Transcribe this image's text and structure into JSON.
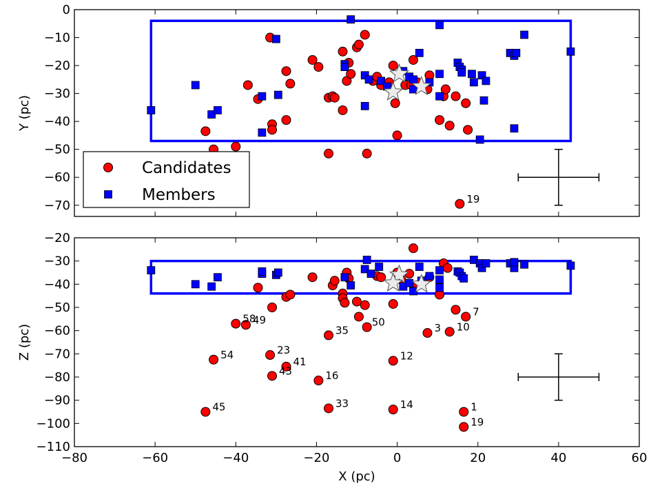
{
  "chart_data": [
    {
      "type": "scatter",
      "id": "top",
      "xlabel": "",
      "ylabel": "Y (pc)",
      "xlim": [
        -80,
        60
      ],
      "ylim": [
        -74,
        0
      ],
      "xticks": [
        -80,
        -60,
        -40,
        -20,
        0,
        20,
        40,
        60
      ],
      "yticks": [
        0,
        -10,
        -20,
        -30,
        -40,
        -50,
        -60,
        -70
      ],
      "ytick_labels": [
        "0",
        "−10",
        "−20",
        "−30",
        "−40",
        "−50",
        "−60",
        "−70"
      ],
      "show_x_tick_labels": false,
      "rect": {
        "x0": -61,
        "x1": 43,
        "y0": -47,
        "y1": -4,
        "color": "#0000ff"
      },
      "error_bar": {
        "x": 40,
        "y": -60,
        "xerr": 10,
        "yerr": 10
      },
      "legend": {
        "location": "lower-left",
        "entries": [
          {
            "label": "Candidates",
            "marker": "circle",
            "color": "#ff0000"
          },
          {
            "label": "Members",
            "marker": "square",
            "color": "#0000ff"
          }
        ]
      },
      "series": [
        {
          "name": "Candidates",
          "marker": "circle",
          "color": "#ff0000",
          "points": [
            [
              -47.5,
              -43.5
            ],
            [
              -45.5,
              -50
            ],
            [
              -40,
              -49
            ],
            [
              -37,
              -27
            ],
            [
              -34.5,
              -32
            ],
            [
              -31.5,
              -10
            ],
            [
              -31,
              -41
            ],
            [
              -31,
              -43
            ],
            [
              -27.5,
              -22
            ],
            [
              -27.5,
              -39.5
            ],
            [
              -26.5,
              -26.5
            ],
            [
              -21,
              -18
            ],
            [
              -19.5,
              -20.5
            ],
            [
              -17,
              -31.5
            ],
            [
              -17,
              -51.5
            ],
            [
              -16,
              -31
            ],
            [
              -15.5,
              -31.5
            ],
            [
              -13.5,
              -15
            ],
            [
              -13.5,
              -36
            ],
            [
              -12.5,
              -25.5
            ],
            [
              -12,
              -19
            ],
            [
              -11.5,
              -23
            ],
            [
              -10,
              -13.5
            ],
            [
              -9.5,
              -12.5
            ],
            [
              -8,
              -9
            ],
            [
              -7.5,
              -51.5
            ],
            [
              -6,
              -25.5
            ],
            [
              -5,
              -24
            ],
            [
              -4,
              -27
            ],
            [
              -2,
              -26
            ],
            [
              -1,
              -20
            ],
            [
              -0.5,
              -33.5
            ],
            [
              0,
              -45
            ],
            [
              2,
              -27
            ],
            [
              3.5,
              -27
            ],
            [
              4,
              -18
            ],
            [
              5,
              -26
            ],
            [
              7.5,
              -28.5
            ],
            [
              8,
              -23.5
            ],
            [
              10.5,
              -39.5
            ],
            [
              11.5,
              -31
            ],
            [
              12,
              -28.5
            ],
            [
              13,
              -41.5
            ],
            [
              14.5,
              -31
            ],
            [
              17,
              -33.5
            ],
            [
              17.5,
              -43
            ],
            [
              15.5,
              -69.5
            ]
          ],
          "labels": [
            {
              "x": 15.5,
              "y": -69.5,
              "text": "19"
            }
          ]
        },
        {
          "name": "Members",
          "marker": "square",
          "color": "#0000ff",
          "points": [
            [
              -61,
              -36
            ],
            [
              -50,
              -27
            ],
            [
              -46,
              -37.5
            ],
            [
              -44.5,
              -36
            ],
            [
              -33.5,
              -31
            ],
            [
              -33.5,
              -44
            ],
            [
              -30,
              -10.5
            ],
            [
              -29.5,
              -30.5
            ],
            [
              -13,
              -19.5
            ],
            [
              -13,
              -20.5
            ],
            [
              -11.5,
              -3.5
            ],
            [
              -8,
              -23.5
            ],
            [
              -8,
              -34.5
            ],
            [
              -7,
              -25
            ],
            [
              -4,
              -25.5
            ],
            [
              -2.5,
              -27.5
            ],
            [
              1.5,
              -22
            ],
            [
              3,
              -24
            ],
            [
              4,
              -25
            ],
            [
              4,
              -28.5
            ],
            [
              5.5,
              -15.5
            ],
            [
              8,
              -26
            ],
            [
              10.5,
              -23
            ],
            [
              10.5,
              -31
            ],
            [
              10.5,
              -5.5
            ],
            [
              15,
              -19
            ],
            [
              15.5,
              -20.5
            ],
            [
              16,
              -21.5
            ],
            [
              16,
              -22.5
            ],
            [
              18.5,
              -23
            ],
            [
              19,
              -26
            ],
            [
              20.5,
              -46.5
            ],
            [
              21,
              -23.5
            ],
            [
              21.5,
              -32.5
            ],
            [
              22,
              -25.5
            ],
            [
              28,
              -15.5
            ],
            [
              29,
              -16.5
            ],
            [
              29.5,
              -15.5
            ],
            [
              29,
              -42.5
            ],
            [
              31.5,
              -9
            ],
            [
              43,
              -15
            ]
          ]
        },
        {
          "name": "Stars",
          "marker": "star",
          "color": "#ebebeb",
          "points": [
            [
              0.5,
              -23
            ],
            [
              -1,
              -29.5
            ],
            [
              6,
              -27.5
            ]
          ]
        }
      ]
    },
    {
      "type": "scatter",
      "id": "bottom",
      "xlabel": "X (pc)",
      "ylabel": "Z (pc)",
      "xlim": [
        -80,
        60
      ],
      "ylim": [
        -110,
        -20
      ],
      "xticks": [
        -80,
        -60,
        -40,
        -20,
        0,
        20,
        40,
        60
      ],
      "xtick_labels": [
        "−80",
        "−60",
        "−40",
        "−20",
        "0",
        "20",
        "40",
        "60"
      ],
      "yticks": [
        -20,
        -30,
        -40,
        -50,
        -60,
        -70,
        -80,
        -90,
        -100,
        -110
      ],
      "ytick_labels": [
        "−20",
        "−30",
        "−40",
        "−50",
        "−60",
        "−70",
        "−80",
        "−90",
        "−100",
        "−110"
      ],
      "show_x_tick_labels": true,
      "rect": {
        "x0": -61,
        "x1": 43,
        "y0": -44,
        "y1": -30,
        "color": "#0000ff"
      },
      "error_bar": {
        "x": 40,
        "y": -80,
        "xerr": 10,
        "yerr": 10
      },
      "series": [
        {
          "name": "Candidates",
          "marker": "circle",
          "color": "#ff0000",
          "points": [
            [
              -47.5,
              -95
            ],
            [
              -45.5,
              -72.5
            ],
            [
              -40,
              -57
            ],
            [
              -37.5,
              -57.5
            ],
            [
              -34.5,
              -41.5
            ],
            [
              -31.5,
              -70.5
            ],
            [
              -31,
              -79.5
            ],
            [
              -31,
              -50
            ],
            [
              -27.5,
              -45.5
            ],
            [
              -27.5,
              -75.5
            ],
            [
              -26.5,
              -44.5
            ],
            [
              -21,
              -37
            ],
            [
              -19.5,
              -81.5
            ],
            [
              -17,
              -62
            ],
            [
              -17,
              -93.5
            ],
            [
              -16,
              -40.5
            ],
            [
              -15.5,
              -38.5
            ],
            [
              -13.5,
              -44
            ],
            [
              -13.5,
              -46
            ],
            [
              -13,
              -48
            ],
            [
              -12.5,
              -35
            ],
            [
              -12,
              -37.5
            ],
            [
              -10,
              -47.5
            ],
            [
              -9.5,
              -54
            ],
            [
              -8,
              -49
            ],
            [
              -7.5,
              -58.5
            ],
            [
              -5,
              -36.5
            ],
            [
              -4,
              -37
            ],
            [
              -1,
              -48.5
            ],
            [
              -1,
              -73
            ],
            [
              -1,
              -94
            ],
            [
              0,
              -35
            ],
            [
              1,
              -38
            ],
            [
              3,
              -35.5
            ],
            [
              4,
              -24.5
            ],
            [
              5,
              -40.5
            ],
            [
              7.5,
              -61
            ],
            [
              8,
              -37
            ],
            [
              10.5,
              -44.5
            ],
            [
              11.5,
              -31
            ],
            [
              12.5,
              -33
            ],
            [
              13,
              -60.5
            ],
            [
              14.5,
              -51
            ],
            [
              17,
              -54
            ],
            [
              16.5,
              -95
            ],
            [
              16.5,
              -101.5
            ]
          ],
          "labels": [
            {
              "x": 17,
              "y": -54,
              "text": "7"
            },
            {
              "x": -40,
              "y": -57,
              "text": "58"
            },
            {
              "x": -37.5,
              "y": -57.5,
              "text": "49"
            },
            {
              "x": -8,
              "y": -58.5,
              "text": "50"
            },
            {
              "x": 7.5,
              "y": -61,
              "text": "3"
            },
            {
              "x": 13,
              "y": -60.5,
              "text": "10"
            },
            {
              "x": -17,
              "y": -62,
              "text": "35"
            },
            {
              "x": -31.5,
              "y": -70.5,
              "text": "23"
            },
            {
              "x": -45.5,
              "y": -72.5,
              "text": "54"
            },
            {
              "x": -1,
              "y": -73,
              "text": "12"
            },
            {
              "x": -27.5,
              "y": -75.5,
              "text": "41"
            },
            {
              "x": -31,
              "y": -79.5,
              "text": "43"
            },
            {
              "x": -19.5,
              "y": -81.5,
              "text": "16"
            },
            {
              "x": -17,
              "y": -93.5,
              "text": "33"
            },
            {
              "x": -1,
              "y": -94,
              "text": "14"
            },
            {
              "x": -47.5,
              "y": -95,
              "text": "45"
            },
            {
              "x": 16.5,
              "y": -95,
              "text": "1"
            },
            {
              "x": 16.5,
              "y": -101.5,
              "text": "19"
            }
          ]
        },
        {
          "name": "Members",
          "marker": "square",
          "color": "#0000ff",
          "points": [
            [
              -61,
              -34
            ],
            [
              -50,
              -40
            ],
            [
              -46,
              -41
            ],
            [
              -44.5,
              -37
            ],
            [
              -33.5,
              -35.5
            ],
            [
              -33.5,
              -34.5
            ],
            [
              -30,
              -36
            ],
            [
              -29.5,
              -35
            ],
            [
              -13,
              -37
            ],
            [
              -11.5,
              -40.5
            ],
            [
              -8,
              -33.5
            ],
            [
              -7.5,
              -29.5
            ],
            [
              -6.5,
              -35.5
            ],
            [
              -4.5,
              -32.5
            ],
            [
              1.5,
              -41
            ],
            [
              3,
              -39.5
            ],
            [
              4,
              -43
            ],
            [
              5.5,
              -32.5
            ],
            [
              6,
              -38.5
            ],
            [
              8,
              -36.5
            ],
            [
              10.5,
              -34
            ],
            [
              10.5,
              -38
            ],
            [
              10.5,
              -41.5
            ],
            [
              15,
              -34.5
            ],
            [
              15.5,
              -35
            ],
            [
              16,
              -36.5
            ],
            [
              16.5,
              -37.5
            ],
            [
              19,
              -29.5
            ],
            [
              20.5,
              -31
            ],
            [
              21,
              -33
            ],
            [
              22,
              -31
            ],
            [
              28,
              -31
            ],
            [
              29,
              -31
            ],
            [
              29,
              -33
            ],
            [
              29,
              -30.5
            ],
            [
              31.5,
              -31.5
            ],
            [
              43,
              -32
            ]
          ]
        },
        {
          "name": "Stars",
          "marker": "star",
          "color": "#ebebeb",
          "points": [
            [
              0.5,
              -36
            ],
            [
              -1,
              -39.5
            ],
            [
              6,
              -40
            ]
          ]
        }
      ]
    }
  ]
}
